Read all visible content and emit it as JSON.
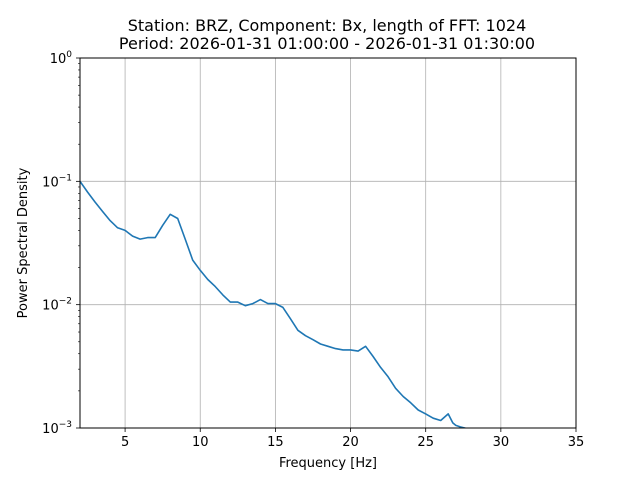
{
  "chart_data": {
    "type": "line",
    "title_line1": "Station: BRZ, Component: Bx, length of FFT: 1024",
    "title_line2": "Period: 2026-01-31 01:00:00 - 2026-01-31 01:30:00",
    "xlabel": "Frequency [Hz]",
    "ylabel": "Power Spectral Density",
    "xlim": [
      2,
      35
    ],
    "ylim": [
      0.001,
      1
    ],
    "yscale": "log",
    "grid": true,
    "line_color": "#1f77b4",
    "x_ticks": [
      5,
      10,
      15,
      20,
      25,
      30,
      35
    ],
    "x_tick_labels": [
      "5",
      "10",
      "15",
      "20",
      "25",
      "30",
      "35"
    ],
    "y_ticks": [
      {
        "value": 1,
        "base": "10",
        "exp": "0"
      },
      {
        "value": 0.1,
        "base": "10",
        "exp": "−1"
      },
      {
        "value": 0.01,
        "base": "10",
        "exp": "−2"
      },
      {
        "value": 0.001,
        "base": "10",
        "exp": "−3"
      }
    ],
    "series": [
      {
        "x": [
          2.0,
          2.5,
          3.0,
          3.5,
          4.0,
          4.5,
          5.0,
          5.5,
          6.0,
          6.5,
          7.0,
          7.5,
          8.0,
          8.5,
          9.0,
          9.5,
          10.0,
          10.5,
          11.0,
          11.5,
          12.0,
          12.5,
          13.0,
          13.5,
          14.0,
          14.5,
          15.0,
          15.5,
          16.0,
          16.5,
          17.0,
          17.5,
          18.0,
          18.5,
          19.0,
          19.5,
          20.0,
          20.5,
          21.0,
          21.5,
          22.0,
          22.5,
          23.0,
          23.5,
          24.0,
          24.5,
          25.0,
          25.5,
          26.0,
          26.5,
          26.8,
          27.0,
          27.3,
          27.6,
          27.8,
          28.0,
          28.3
        ],
        "y": [
          0.1,
          0.082,
          0.068,
          0.057,
          0.048,
          0.042,
          0.04,
          0.036,
          0.034,
          0.035,
          0.035,
          0.044,
          0.054,
          0.05,
          0.034,
          0.023,
          0.019,
          0.016,
          0.014,
          0.012,
          0.0105,
          0.0105,
          0.0098,
          0.0102,
          0.011,
          0.0102,
          0.0102,
          0.0095,
          0.0077,
          0.0062,
          0.0056,
          0.0052,
          0.0048,
          0.0046,
          0.0044,
          0.0043,
          0.0043,
          0.0042,
          0.0046,
          0.0038,
          0.0031,
          0.0026,
          0.0021,
          0.0018,
          0.0016,
          0.0014,
          0.0013,
          0.0012,
          0.00115,
          0.0013,
          0.0011,
          0.00105,
          0.00102,
          0.001,
          0.00098,
          0.00097,
          0.00096
        ]
      }
    ]
  }
}
